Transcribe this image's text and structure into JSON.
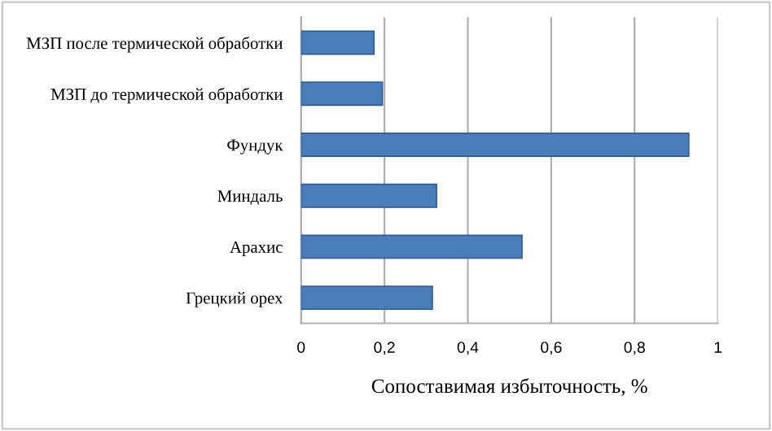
{
  "chart_data": {
    "type": "bar",
    "orientation": "horizontal",
    "xlabel": "Сопоставимая избыточность, %",
    "categories": [
      "МЗП после термической обработки",
      "МЗП до термической обработки",
      "Фундук",
      "Миндаль",
      "Арахис",
      "Грецкий орех"
    ],
    "values": [
      0.175,
      0.195,
      0.93,
      0.325,
      0.53,
      0.315
    ],
    "color": "#4a7ebb",
    "xlim": [
      0,
      1
    ],
    "xticks": [
      0,
      {
        "value": 0.2,
        "label": "0,2"
      },
      {
        "value": 0.4,
        "label": "0,4"
      },
      {
        "value": 0.6,
        "label": "0,6"
      },
      {
        "value": 0.8,
        "label": "0,8"
      },
      1
    ],
    "grid": "x",
    "legend": false
  }
}
